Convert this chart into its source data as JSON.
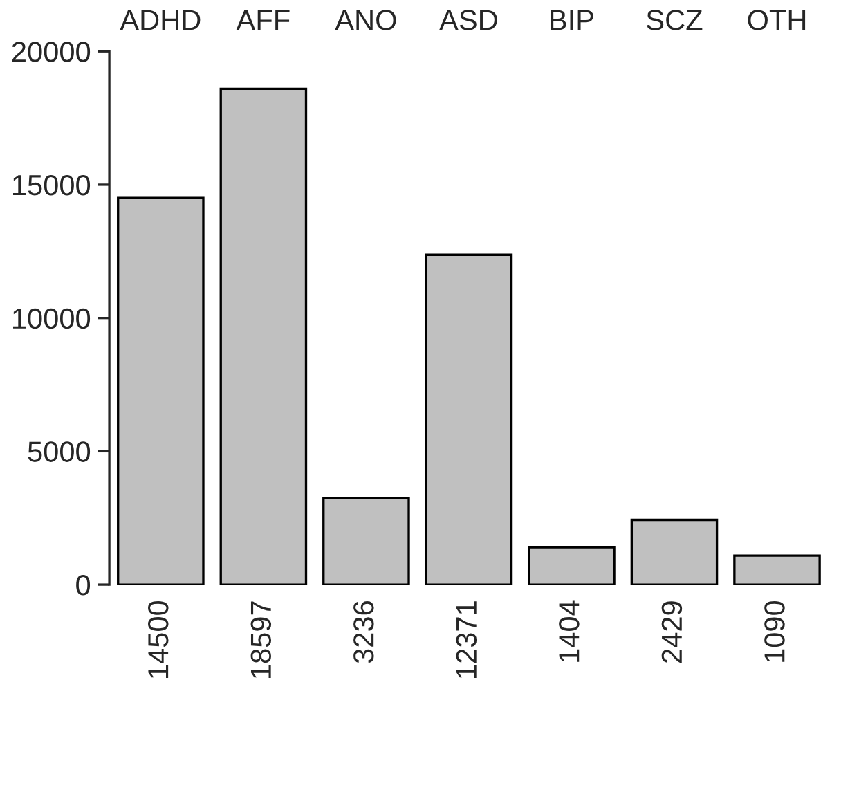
{
  "chart_data": {
    "type": "bar",
    "categories": [
      "ADHD",
      "AFF",
      "ANO",
      "ASD",
      "BIP",
      "SCZ",
      "OTH"
    ],
    "values": [
      14500,
      18597,
      3236,
      12371,
      1404,
      2429,
      1090
    ],
    "color": "#c0c0c0",
    "ylim": [
      0,
      20000
    ],
    "yticks": [
      0,
      5000,
      10000,
      15000,
      20000
    ],
    "grid": false,
    "data_labels": true
  }
}
